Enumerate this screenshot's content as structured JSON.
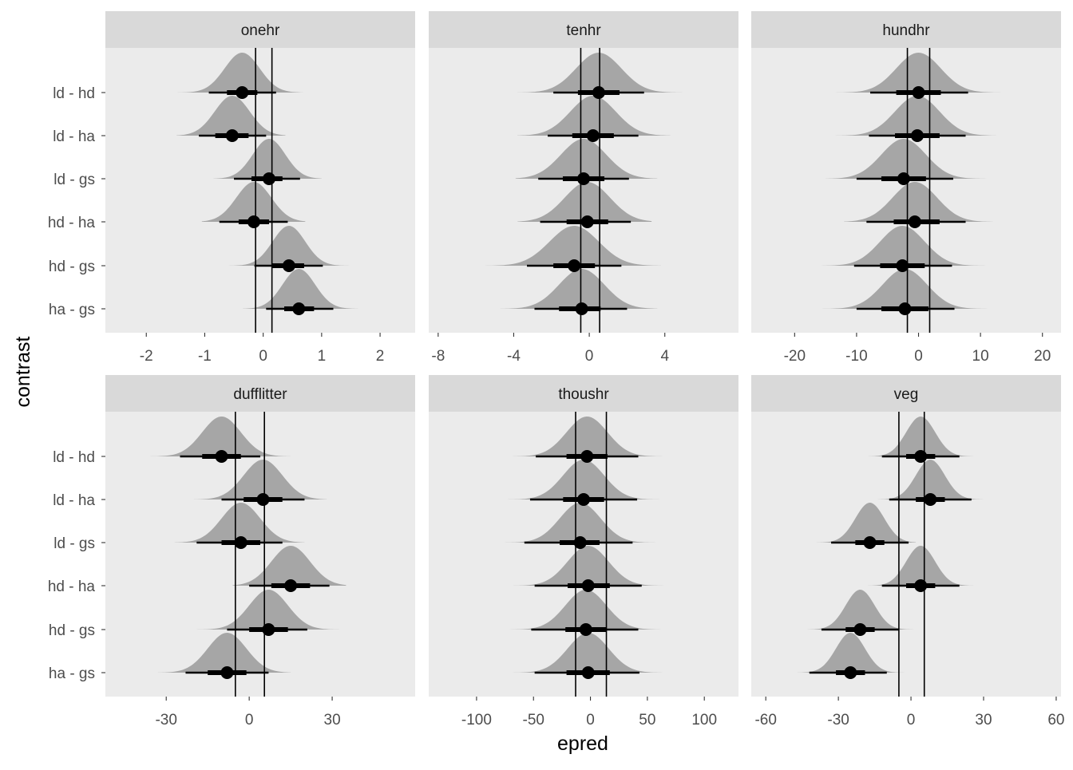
{
  "chart_data": {
    "type": "halfeye",
    "xlabel": "epred",
    "ylabel": "contrast",
    "categories": [
      "ld - hd",
      "ld - ha",
      "ld - gs",
      "hd - ha",
      "hd - gs",
      "ha - gs"
    ],
    "colors": {
      "panel_bg": "#EBEBEB",
      "strip_bg": "#D9D9D9",
      "density": "#A6A6A6",
      "ink": "#000000"
    },
    "panels": [
      {
        "title": "onehr",
        "xlim": [
          -2.7,
          2.6
        ],
        "xticks": [
          "-2",
          "-1",
          "0",
          "1",
          "2"
        ],
        "xtick_values": [
          -2,
          -1,
          0,
          1,
          2
        ],
        "ref_lines": [
          -0.13,
          0.15
        ],
        "series": [
          {
            "category": "ld - hd",
            "median": -0.36,
            "sd": 0.3,
            "ci66": [
              -0.62,
              -0.1
            ],
            "ci95": [
              -0.93,
              0.22
            ],
            "range": [
              -1.65,
              0.68
            ]
          },
          {
            "category": "ld - ha",
            "median": -0.53,
            "sd": 0.3,
            "ci66": [
              -0.82,
              -0.25
            ],
            "ci95": [
              -1.1,
              0.05
            ],
            "range": [
              -1.48,
              0.38
            ]
          },
          {
            "category": "ld - gs",
            "median": 0.1,
            "sd": 0.28,
            "ci66": [
              -0.2,
              0.33
            ],
            "ci95": [
              -0.5,
              0.63
            ],
            "range": [
              -0.85,
              1.0
            ]
          },
          {
            "category": "hd - ha",
            "median": -0.16,
            "sd": 0.3,
            "ci66": [
              -0.42,
              0.1
            ],
            "ci95": [
              -0.75,
              0.42
            ],
            "range": [
              -1.05,
              0.72
            ]
          },
          {
            "category": "hd - gs",
            "median": 0.44,
            "sd": 0.28,
            "ci66": [
              0.15,
              0.7
            ],
            "ci95": [
              -0.15,
              1.02
            ],
            "range": [
              -0.68,
              1.62
            ]
          },
          {
            "category": "ha - gs",
            "median": 0.61,
            "sd": 0.28,
            "ci66": [
              0.36,
              0.87
            ],
            "ci95": [
              0.05,
              1.2
            ],
            "range": [
              -0.35,
              1.62
            ]
          }
        ]
      },
      {
        "title": "tenhr",
        "xlim": [
          -8.5,
          7.9
        ],
        "xticks": [
          "-8",
          "-4",
          "0",
          "4"
        ],
        "xtick_values": [
          -8,
          -4,
          0,
          4
        ],
        "ref_lines": [
          -0.45,
          0.55
        ],
        "series": [
          {
            "category": "ld - hd",
            "median": 0.5,
            "sd": 1.2,
            "ci66": [
              -0.6,
              1.6
            ],
            "ci95": [
              -1.9,
              2.9
            ],
            "range": [
              -3.8,
              5.3
            ]
          },
          {
            "category": "ld - ha",
            "median": 0.2,
            "sd": 1.2,
            "ci66": [
              -0.9,
              1.3
            ],
            "ci95": [
              -2.2,
              2.6
            ],
            "range": [
              -3.8,
              4.3
            ]
          },
          {
            "category": "ld - gs",
            "median": -0.3,
            "sd": 1.2,
            "ci66": [
              -1.4,
              0.8
            ],
            "ci95": [
              -2.7,
              2.1
            ],
            "range": [
              -3.9,
              3.6
            ]
          },
          {
            "category": "hd - ha",
            "median": -0.1,
            "sd": 1.2,
            "ci66": [
              -1.2,
              1.0
            ],
            "ci95": [
              -2.6,
              2.2
            ],
            "range": [
              -3.8,
              3.3
            ]
          },
          {
            "category": "hd - gs",
            "median": -0.8,
            "sd": 1.3,
            "ci66": [
              -1.9,
              0.3
            ],
            "ci95": [
              -3.3,
              1.7
            ],
            "range": [
              -6.3,
              3.8
            ]
          },
          {
            "category": "ha - gs",
            "median": -0.4,
            "sd": 1.2,
            "ci66": [
              -1.6,
              0.6
            ],
            "ci95": [
              -2.9,
              2.0
            ],
            "range": [
              -4.7,
              3.6
            ]
          }
        ]
      },
      {
        "title": "hundhr",
        "xlim": [
          -27,
          23
        ],
        "xticks": [
          "-20",
          "-10",
          "0",
          "10",
          "20"
        ],
        "xtick_values": [
          -20,
          -10,
          0,
          10,
          20
        ],
        "ref_lines": [
          -1.8,
          1.8
        ],
        "series": [
          {
            "category": "ld - hd",
            "median": 0.0,
            "sd": 3.6,
            "ci66": [
              -3.6,
              3.6
            ],
            "ci95": [
              -7.8,
              8.0
            ],
            "range": [
              -15,
              16.5
            ]
          },
          {
            "category": "ld - ha",
            "median": -0.2,
            "sd": 3.6,
            "ci66": [
              -3.8,
              3.4
            ],
            "ci95": [
              -8.0,
              7.6
            ],
            "range": [
              -13.5,
              12.5
            ]
          },
          {
            "category": "ld - gs",
            "median": -2.4,
            "sd": 3.6,
            "ci66": [
              -6.0,
              1.2
            ],
            "ci95": [
              -10.0,
              5.6
            ],
            "range": [
              -15,
              12
            ]
          },
          {
            "category": "hd - ha",
            "median": -0.6,
            "sd": 3.6,
            "ci66": [
              -4.0,
              3.4
            ],
            "ci95": [
              -8.4,
              7.6
            ],
            "range": [
              -12,
              12
            ]
          },
          {
            "category": "hd - gs",
            "median": -2.6,
            "sd": 3.6,
            "ci66": [
              -6.2,
              1.0
            ],
            "ci95": [
              -10.4,
              5.4
            ],
            "range": [
              -18,
              12
            ]
          },
          {
            "category": "ha - gs",
            "median": -2.2,
            "sd": 3.6,
            "ci66": [
              -6.0,
              1.6
            ],
            "ci95": [
              -10.0,
              5.8
            ],
            "range": [
              -16,
              11.5
            ]
          }
        ]
      },
      {
        "title": "dufflitter",
        "xlim": [
          -52,
          60
        ],
        "xticks": [
          "-30",
          "0",
          "30"
        ],
        "xtick_values": [
          -30,
          0,
          30
        ],
        "ref_lines": [
          -5,
          5.5
        ],
        "series": [
          {
            "category": "ld - hd",
            "median": -10,
            "sd": 7,
            "ci66": [
              -17,
              -3
            ],
            "ci95": [
              -25,
              4
            ],
            "range": [
              -36,
              15
            ]
          },
          {
            "category": "ld - ha",
            "median": 5,
            "sd": 7,
            "ci66": [
              -2,
              12
            ],
            "ci95": [
              -10,
              20
            ],
            "range": [
              -20,
              28
            ]
          },
          {
            "category": "ld - gs",
            "median": -3,
            "sd": 7,
            "ci66": [
              -10,
              4
            ],
            "ci95": [
              -19,
              12
            ],
            "range": [
              -27,
              20
            ]
          },
          {
            "category": "hd - ha",
            "median": 15,
            "sd": 7,
            "ci66": [
              8,
              22
            ],
            "ci95": [
              0,
              29
            ],
            "range": [
              -6,
              35
            ]
          },
          {
            "category": "hd - gs",
            "median": 7,
            "sd": 7,
            "ci66": [
              0,
              14
            ],
            "ci95": [
              -8,
              21
            ],
            "range": [
              -22,
              35
            ]
          },
          {
            "category": "ha - gs",
            "median": -8,
            "sd": 7,
            "ci66": [
              -15,
              -1
            ],
            "ci95": [
              -23,
              7
            ],
            "range": [
              -33,
              15
            ]
          }
        ]
      },
      {
        "title": "thoushr",
        "xlim": [
          -142,
          130
        ],
        "xticks": [
          "-100",
          "-50",
          "0",
          "50",
          "100"
        ],
        "xtick_values": [
          -100,
          -50,
          0,
          50,
          100
        ],
        "ref_lines": [
          -13,
          14
        ],
        "series": [
          {
            "category": "ld - hd",
            "median": -3,
            "sd": 18,
            "ci66": [
              -21,
              15
            ],
            "ci95": [
              -48,
              42
            ],
            "range": [
              -83,
              76
            ]
          },
          {
            "category": "ld - ha",
            "median": -6,
            "sd": 18,
            "ci66": [
              -24,
              12
            ],
            "ci95": [
              -53,
              41
            ],
            "range": [
              -85,
              71
            ]
          },
          {
            "category": "ld - gs",
            "median": -9,
            "sd": 18,
            "ci66": [
              -27,
              8
            ],
            "ci95": [
              -58,
              37
            ],
            "range": [
              -83,
              63
            ]
          },
          {
            "category": "hd - ha",
            "median": -2,
            "sd": 18,
            "ci66": [
              -20,
              17
            ],
            "ci95": [
              -49,
              45
            ],
            "range": [
              -70,
              68
            ]
          },
          {
            "category": "hd - gs",
            "median": -4,
            "sd": 18,
            "ci66": [
              -22,
              14
            ],
            "ci95": [
              -52,
              42
            ],
            "range": [
              -94,
              90
            ]
          },
          {
            "category": "ha - gs",
            "median": -2,
            "sd": 18,
            "ci66": [
              -21,
              17
            ],
            "ci95": [
              -49,
              43
            ],
            "range": [
              -83,
              80
            ]
          }
        ]
      },
      {
        "title": "veg",
        "xlim": [
          -66,
          62
        ],
        "xticks": [
          "-60",
          "-30",
          "0",
          "30",
          "60"
        ],
        "xtick_values": [
          -60,
          -30,
          0,
          30,
          60
        ],
        "ref_lines": [
          -5,
          5.5
        ],
        "series": [
          {
            "category": "ld - hd",
            "median": 4,
            "sd": 6,
            "ci66": [
              -2,
              10
            ],
            "ci95": [
              -12,
              20
            ],
            "range": [
              -22,
              33
            ]
          },
          {
            "category": "ld - ha",
            "median": 8,
            "sd": 6,
            "ci66": [
              2,
              14
            ],
            "ci95": [
              -9,
              25
            ],
            "range": [
              -18,
              36
            ]
          },
          {
            "category": "ld - gs",
            "median": -17,
            "sd": 6,
            "ci66": [
              -23,
              -11
            ],
            "ci95": [
              -33,
              -1
            ],
            "range": [
              -42,
              2
            ]
          },
          {
            "category": "hd - ha",
            "median": 4,
            "sd": 6,
            "ci66": [
              -2,
              10
            ],
            "ci95": [
              -12,
              20
            ],
            "range": [
              -22,
              30
            ]
          },
          {
            "category": "hd - gs",
            "median": -21,
            "sd": 6,
            "ci66": [
              -27,
              -15
            ],
            "ci95": [
              -37,
              -5
            ],
            "range": [
              -51,
              7
            ]
          },
          {
            "category": "ha - gs",
            "median": -25,
            "sd": 6,
            "ci66": [
              -31,
              -19
            ],
            "ci95": [
              -42,
              -10
            ],
            "range": [
              -53,
              -2
            ]
          }
        ]
      }
    ]
  }
}
